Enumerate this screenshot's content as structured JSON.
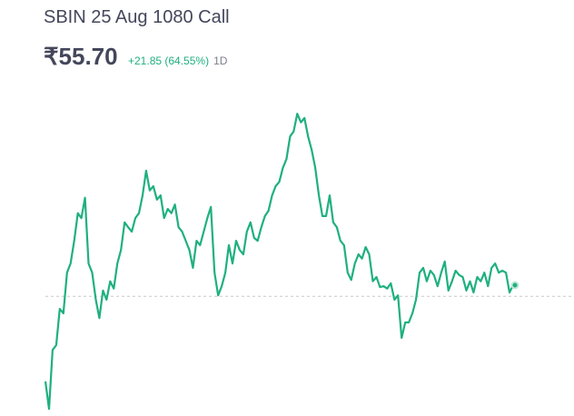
{
  "chart_data": {
    "type": "line",
    "title": "SBIN 25 Aug 1080 Call",
    "price": "₹55.70",
    "change": "+21.85 (64.55%)",
    "period": "1D",
    "color": "#1fb07e",
    "reference_line": 53.4,
    "ylim": [
      28.63,
      95.93
    ],
    "values": [
      35.8,
      30.1,
      42.3,
      43.3,
      50.8,
      49.9,
      58.3,
      60.2,
      64.9,
      70.6,
      69.6,
      73.8,
      60.2,
      58.3,
      52.7,
      48.9,
      54.6,
      52.7,
      56.5,
      55.0,
      60.2,
      63.0,
      68.7,
      67.7,
      66.8,
      69.6,
      70.6,
      74.3,
      79.4,
      75.3,
      76.2,
      73.4,
      74.3,
      69.6,
      71.5,
      70.6,
      72.4,
      67.7,
      66.8,
      64.9,
      63.0,
      59.3,
      64.9,
      64.0,
      66.8,
      69.6,
      71.9,
      58.3,
      53.6,
      55.5,
      58.3,
      64.0,
      60.2,
      64.9,
      63.0,
      62.1,
      66.8,
      68.7,
      65.5,
      64.9,
      67.7,
      70.0,
      71.1,
      74.3,
      76.2,
      77.1,
      80.0,
      81.8,
      86.5,
      87.5,
      91.2,
      89.4,
      90.3,
      86.5,
      83.7,
      80.0,
      74.3,
      70.0,
      70.0,
      74.3,
      68.7,
      67.7,
      64.9,
      64.0,
      58.3,
      56.8,
      60.2,
      62.1,
      61.2,
      63.6,
      62.1,
      56.5,
      57.4,
      55.3,
      55.5,
      55.0,
      56.1,
      52.7,
      53.6,
      44.8,
      48.0,
      48.0,
      49.9,
      52.7,
      58.3,
      59.3,
      56.5,
      58.7,
      57.8,
      55.5,
      58.3,
      60.6,
      54.6,
      56.5,
      58.7,
      57.8,
      57.4,
      54.6,
      56.5,
      54.2,
      57.4,
      56.5,
      58.3,
      55.5,
      59.3,
      60.2,
      58.3,
      58.7,
      58.3,
      54.2,
      55.7
    ]
  }
}
